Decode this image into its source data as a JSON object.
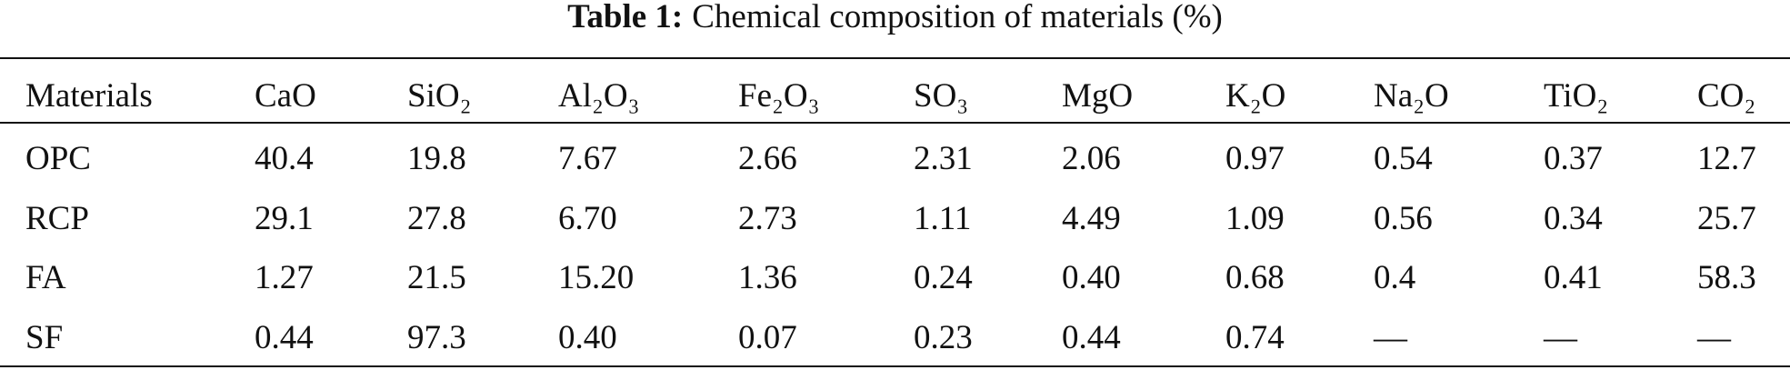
{
  "caption": {
    "label": "Table 1:",
    "text": "Chemical composition of materials (%)"
  },
  "table": {
    "header": [
      "Materials",
      "CaO",
      "SiO₂",
      "Al₂O₃",
      "Fe₂O₃",
      "SO₃",
      "MgO",
      "K₂O",
      "Na₂O",
      "TiO₂",
      "CO₂"
    ],
    "rows": [
      [
        "OPC",
        "40.4",
        "19.8",
        "7.67",
        "2.66",
        "2.31",
        "2.06",
        "0.97",
        "0.54",
        "0.37",
        "12.7"
      ],
      [
        "RCP",
        "29.1",
        "27.8",
        "6.70",
        "2.73",
        "1.11",
        "4.49",
        "1.09",
        "0.56",
        "0.34",
        "25.7"
      ],
      [
        "FA",
        "1.27",
        "21.5",
        "15.20",
        "1.36",
        "0.24",
        "0.40",
        "0.68",
        "0.4",
        "0.41",
        "58.3"
      ],
      [
        "SF",
        "0.44",
        "97.3",
        "0.40",
        "0.07",
        "0.23",
        "0.44",
        "0.74",
        "—",
        "—",
        "—"
      ]
    ]
  }
}
